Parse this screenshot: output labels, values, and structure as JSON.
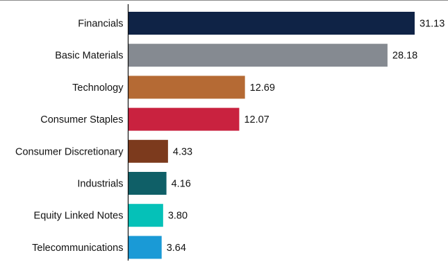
{
  "chart_data": {
    "type": "bar",
    "orientation": "horizontal",
    "categories": [
      "Financials",
      "Basic Materials",
      "Technology",
      "Consumer Staples",
      "Consumer Discretionary",
      "Industrials",
      "Equity Linked Notes",
      "Telecommunications"
    ],
    "values": [
      31.13,
      28.18,
      12.69,
      12.07,
      4.33,
      4.16,
      3.8,
      3.64
    ],
    "value_labels": [
      "31.13",
      "28.18",
      "12.69",
      "12.07",
      "4.33",
      "4.16",
      "3.80",
      "3.64"
    ],
    "colors": [
      "#0f2346",
      "#858a91",
      "#b56a34",
      "#c9223f",
      "#7c3a1d",
      "#0f5f67",
      "#05c1b8",
      "#1a9ad6"
    ],
    "xlim": [
      0,
      31.13
    ],
    "title": "",
    "xlabel": "",
    "ylabel": "",
    "grid": false,
    "legend": "none"
  }
}
